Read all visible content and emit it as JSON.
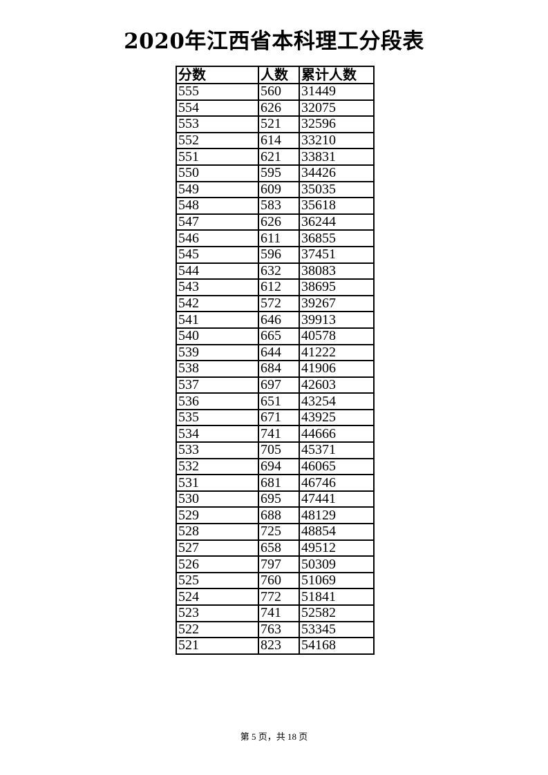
{
  "title": "2020年江西省本科理工分段表",
  "table": {
    "headers": [
      "分数",
      "人数",
      "累计人数"
    ],
    "rows": [
      [
        "555",
        "560",
        "31449"
      ],
      [
        "554",
        "626",
        "32075"
      ],
      [
        "553",
        "521",
        "32596"
      ],
      [
        "552",
        "614",
        "33210"
      ],
      [
        "551",
        "621",
        "33831"
      ],
      [
        "550",
        "595",
        "34426"
      ],
      [
        "549",
        "609",
        "35035"
      ],
      [
        "548",
        "583",
        "35618"
      ],
      [
        "547",
        "626",
        "36244"
      ],
      [
        "546",
        "611",
        "36855"
      ],
      [
        "545",
        "596",
        "37451"
      ],
      [
        "544",
        "632",
        "38083"
      ],
      [
        "543",
        "612",
        "38695"
      ],
      [
        "542",
        "572",
        "39267"
      ],
      [
        "541",
        "646",
        "39913"
      ],
      [
        "540",
        "665",
        "40578"
      ],
      [
        "539",
        "644",
        "41222"
      ],
      [
        "538",
        "684",
        "41906"
      ],
      [
        "537",
        "697",
        "42603"
      ],
      [
        "536",
        "651",
        "43254"
      ],
      [
        "535",
        "671",
        "43925"
      ],
      [
        "534",
        "741",
        "44666"
      ],
      [
        "533",
        "705",
        "45371"
      ],
      [
        "532",
        "694",
        "46065"
      ],
      [
        "531",
        "681",
        "46746"
      ],
      [
        "530",
        "695",
        "47441"
      ],
      [
        "529",
        "688",
        "48129"
      ],
      [
        "528",
        "725",
        "48854"
      ],
      [
        "527",
        "658",
        "49512"
      ],
      [
        "526",
        "797",
        "50309"
      ],
      [
        "525",
        "760",
        "51069"
      ],
      [
        "524",
        "772",
        "51841"
      ],
      [
        "523",
        "741",
        "52582"
      ],
      [
        "522",
        "763",
        "53345"
      ],
      [
        "521",
        "823",
        "54168"
      ]
    ]
  },
  "footer": "第 5 页，共 18 页"
}
